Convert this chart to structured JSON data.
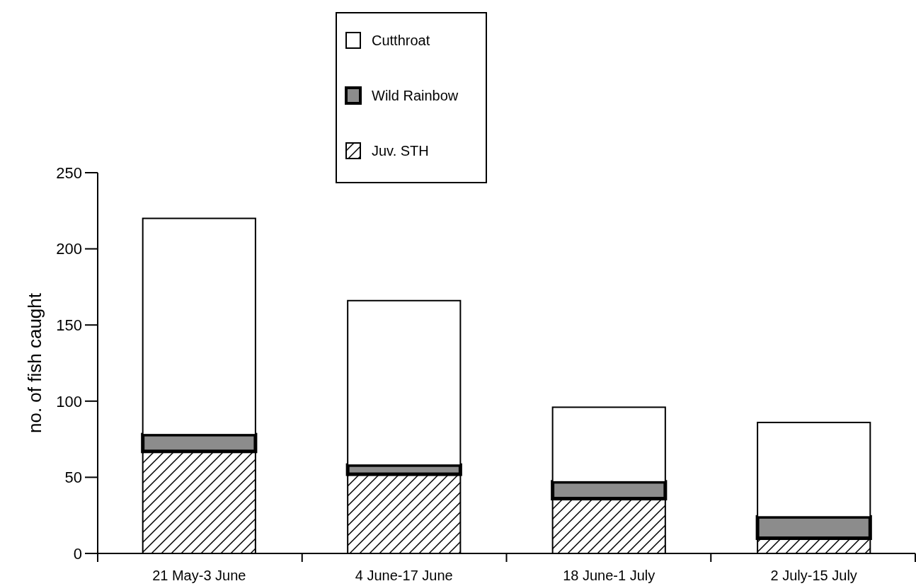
{
  "chart_data": {
    "type": "bar",
    "stacked": true,
    "ylabel": "no. of fish caught",
    "categories": [
      "21 May-3 June",
      "4 June-17 June",
      "18 June-1 July",
      "2 July-15 July"
    ],
    "series": [
      {
        "name": "Juv. STH",
        "color": "#000000",
        "values": [
          67,
          52,
          36,
          10
        ]
      },
      {
        "name": "Wild Rainbow",
        "color": "#8c8c8c",
        "values": [
          11,
          6,
          11,
          14
        ]
      },
      {
        "name": "Cutthroat",
        "color": "#ffffff",
        "values": [
          142,
          108,
          49,
          62
        ]
      }
    ],
    "ylim": [
      0,
      250
    ],
    "yticks": [
      0,
      50,
      100,
      150,
      200,
      250
    ],
    "grid": false,
    "legend": "top"
  }
}
